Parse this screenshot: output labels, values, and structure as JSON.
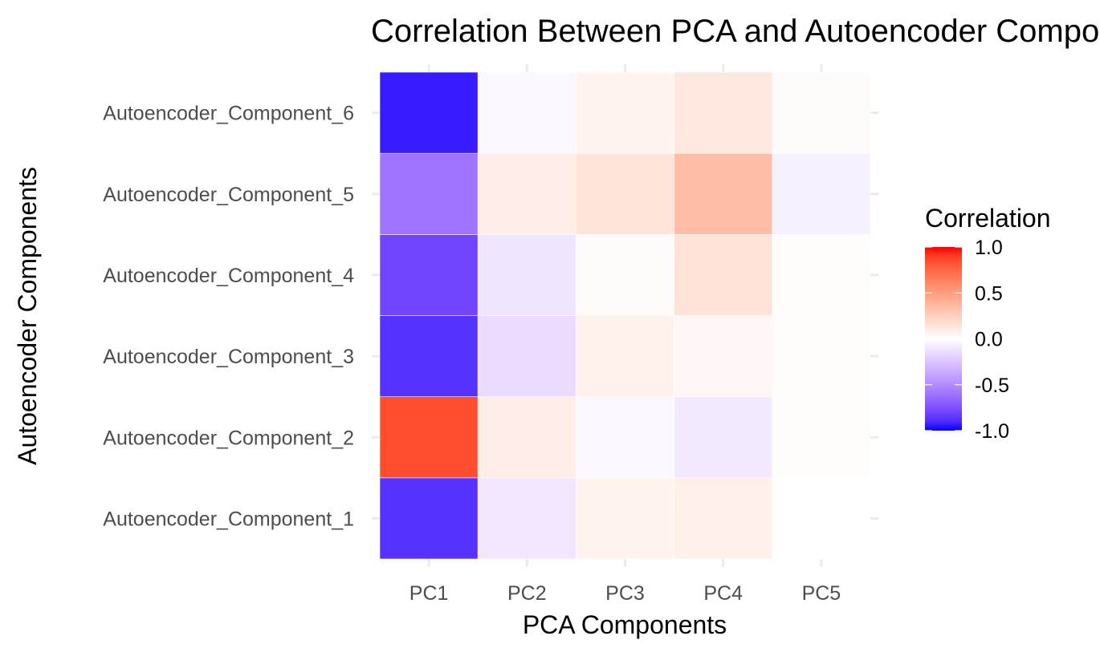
{
  "chart_data": {
    "type": "heatmap",
    "title": "Correlation Between PCA and Autoencoder Components",
    "xlabel": "PCA Components",
    "ylabel": "Autoencoder Components",
    "x_categories": [
      "PC1",
      "PC2",
      "PC3",
      "PC4",
      "PC5"
    ],
    "y_categories": [
      "Autoencoder_Component_1",
      "Autoencoder_Component_2",
      "Autoencoder_Component_3",
      "Autoencoder_Component_4",
      "Autoencoder_Component_5",
      "Autoencoder_Component_6"
    ],
    "values": [
      [
        -0.88,
        -0.1,
        0.06,
        0.08,
        0.0
      ],
      [
        0.85,
        0.09,
        -0.03,
        -0.09,
        0.01
      ],
      [
        -0.88,
        -0.15,
        0.07,
        0.04,
        0.01
      ],
      [
        -0.8,
        -0.11,
        0.02,
        0.15,
        0.01
      ],
      [
        -0.6,
        0.09,
        0.14,
        0.35,
        -0.06
      ],
      [
        -0.95,
        -0.03,
        0.06,
        0.12,
        0.02
      ]
    ],
    "color_scale": {
      "low": "#0000FF",
      "mid": "#FFFFFF",
      "high": "#FF0000",
      "limits": [
        -1,
        1
      ],
      "midpoint": 0
    },
    "legend": {
      "title": "Correlation",
      "ticks": [
        "1.0",
        "0.5",
        "0.0",
        "-0.5",
        "-1.0"
      ],
      "tick_values": [
        1.0,
        0.5,
        0.0,
        -0.5,
        -1.0
      ],
      "placement": "right"
    },
    "grid": true
  }
}
